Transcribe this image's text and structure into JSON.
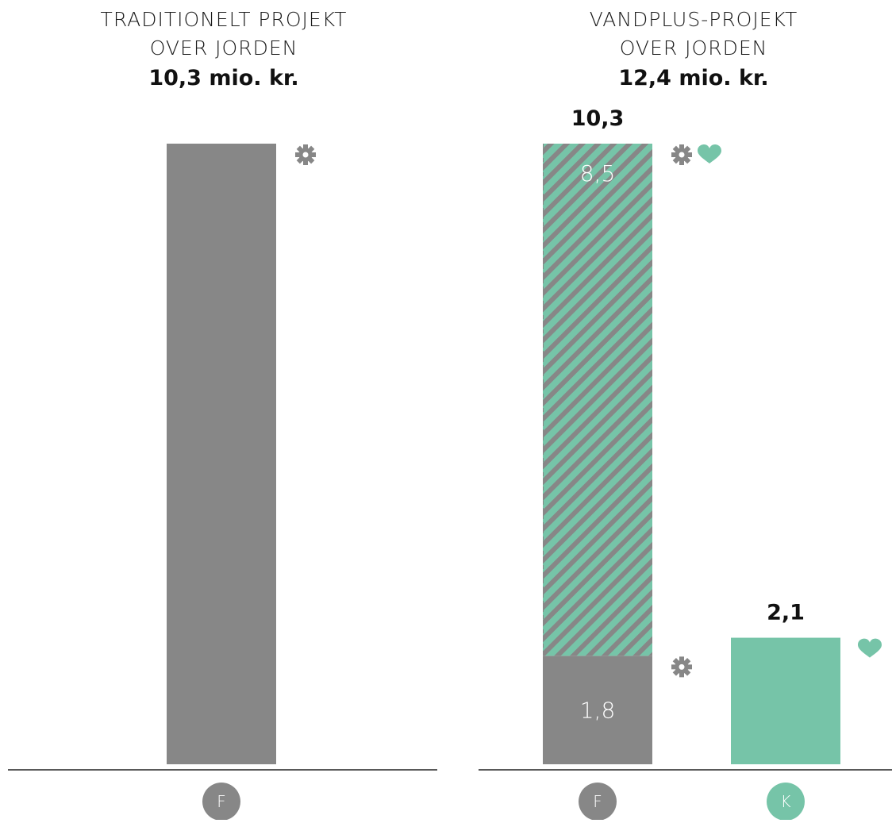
{
  "colors": {
    "gray": "#878787",
    "green": "#76c4a8",
    "axis": "#222222",
    "text": "#111111"
  },
  "chart_data": [
    {
      "type": "bar",
      "title_lines": [
        "TRADITIONELT PROJEKT",
        "OVER JORDEN"
      ],
      "total": "10,3 mio. kr.",
      "categories": [
        "F"
      ],
      "ylim": [
        0,
        10.3
      ],
      "bars": [
        {
          "category": "F",
          "circle_color": "#878787",
          "total_label": "",
          "segments": [
            {
              "value": 10.3,
              "fill": "gray",
              "label": ""
            }
          ],
          "icons": [
            {
              "icon": "gear-icon",
              "at_value": 10.3
            }
          ]
        }
      ]
    },
    {
      "type": "bar",
      "title_lines": [
        "VANDPLUS-PROJEKT",
        "OVER JORDEN"
      ],
      "total": "12,4 mio. kr.",
      "categories": [
        "F",
        "K"
      ],
      "ylim": [
        0,
        10.3
      ],
      "bars": [
        {
          "category": "F",
          "circle_color": "#878787",
          "total_label": "10,3",
          "segments": [
            {
              "value": 1.8,
              "fill": "gray",
              "label": "1,8"
            },
            {
              "value": 8.5,
              "fill": "hatched-green-gray",
              "label": "8,5"
            }
          ],
          "icons": [
            {
              "icon": "gear-icon",
              "at_value": 1.8
            },
            {
              "icon": "gear-icon",
              "at_value": 10.3
            },
            {
              "icon": "heart-icon",
              "at_value": 10.3
            }
          ]
        },
        {
          "category": "K",
          "circle_color": "#76c4a8",
          "total_label": "2,1",
          "segments": [
            {
              "value": 2.1,
              "fill": "green",
              "label": ""
            }
          ],
          "icons": [
            {
              "icon": "heart-icon",
              "at_value": 2.1
            }
          ]
        }
      ]
    }
  ]
}
